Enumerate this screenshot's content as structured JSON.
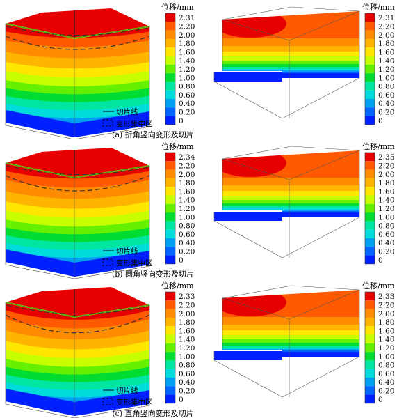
{
  "legend_title": "位移/mm",
  "legend_items": {
    "slice_line": "切片线",
    "concentration_zone": "变形集中区"
  },
  "colorscale": [
    "#e60000",
    "#ff5a00",
    "#ff8c00",
    "#ffb400",
    "#ffe600",
    "#c8ff00",
    "#64f000",
    "#00dc32",
    "#00e6a0",
    "#00dcdc",
    "#00a0f0",
    "#0064ff",
    "#0020ff"
  ],
  "panels": [
    {
      "caption": "(a) 折角竖向变形及切片",
      "scale_labels": [
        "2.31",
        "2.20",
        "2.00",
        "1.80",
        "1.60",
        "1.40",
        "1.20",
        "1.00",
        "0.80",
        "0.60",
        "0.40",
        "0.20",
        "0"
      ]
    },
    {
      "caption": "(b) 圆角竖向变形及切片",
      "scale_labels": [
        "2.34",
        "2.20",
        "2.00",
        "1.80",
        "1.60",
        "1.40",
        "1.20",
        "1.00",
        "0.80",
        "0.60",
        "0.40",
        "0.20",
        "0"
      ],
      "scale_labels_right": [
        "2.35",
        "2.20",
        "2.00",
        "1.80",
        "1.60",
        "1.40",
        "1.20",
        "1.00",
        "0.80",
        "0.60",
        "0.40",
        "0.20",
        "0"
      ]
    },
    {
      "caption": "(c) 直角竖向变形及切片",
      "scale_labels": [
        "2.33",
        "2.20",
        "2.00",
        "1.80",
        "1.60",
        "1.40",
        "1.20",
        "1.00",
        "0.80",
        "0.60",
        "0.40",
        "0.20",
        "0"
      ]
    }
  ]
}
